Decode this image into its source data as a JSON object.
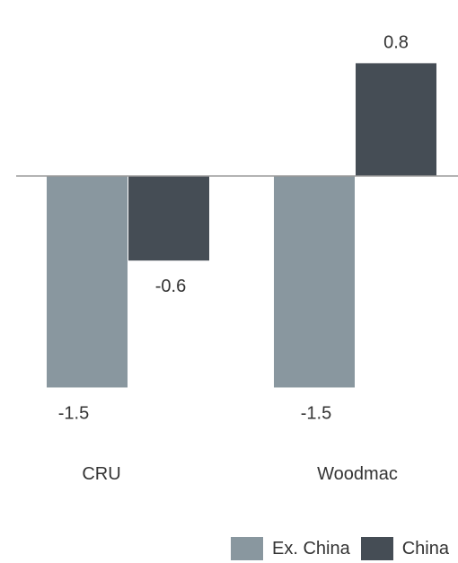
{
  "chart_data": {
    "type": "bar",
    "categories": [
      "CRU",
      "Woodmac"
    ],
    "series": [
      {
        "name": "Ex. China",
        "values": [
          -1.5,
          -1.5
        ],
        "color": "#89979f"
      },
      {
        "name": "China",
        "values": [
          -0.6,
          0.8
        ],
        "color": "#454d55"
      }
    ],
    "data_labels": [
      [
        "-1.5",
        "-1.5"
      ],
      [
        "-0.6",
        "0.8"
      ]
    ],
    "ylim": [
      -1.5,
      0.8
    ],
    "grid": false,
    "legend_position": "bottom-right",
    "title": "",
    "xlabel": "",
    "ylabel": ""
  }
}
